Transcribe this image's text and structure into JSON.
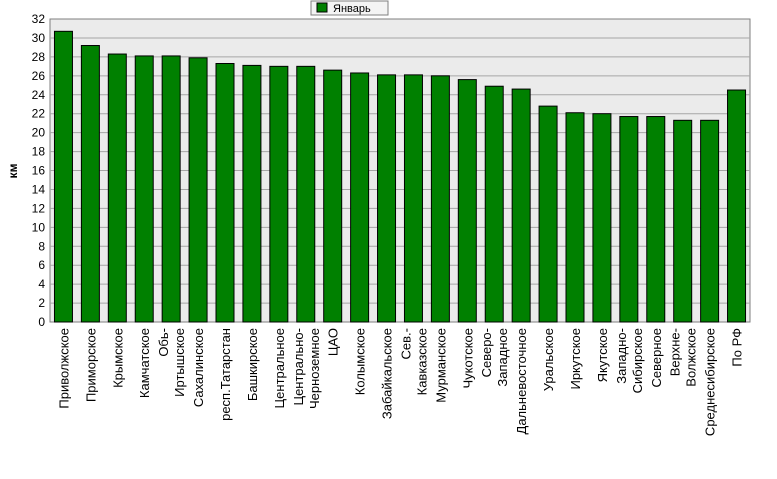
{
  "chart_data": {
    "type": "bar",
    "ylabel": "км",
    "ylim": [
      0,
      32
    ],
    "ytick_step": 2,
    "grid": true,
    "legend_position": "top-center",
    "categories": [
      [
        "Приволжское"
      ],
      [
        "Приморское"
      ],
      [
        "Крымское"
      ],
      [
        "Камчатское"
      ],
      [
        "Обь-",
        "Иртышское"
      ],
      [
        "Сахалинское"
      ],
      [
        "респ.Татарстан"
      ],
      [
        "Башкирское"
      ],
      [
        "Центральное"
      ],
      [
        "Центрально-",
        "Черноземное"
      ],
      [
        "ЦАО"
      ],
      [
        "Колымское"
      ],
      [
        "Забайкальское"
      ],
      [
        "Сев.-",
        "Кавказское"
      ],
      [
        "Мурманское"
      ],
      [
        "Чукотское"
      ],
      [
        "Северо-",
        "Западное"
      ],
      [
        "Дальневосточное"
      ],
      [
        "Уральское"
      ],
      [
        "Иркутское"
      ],
      [
        "Якутское"
      ],
      [
        "Западно-",
        "Сибирское"
      ],
      [
        "Северное"
      ],
      [
        "Верхне-",
        "Волжское"
      ],
      [
        "Среднесибирское"
      ],
      [
        "По РФ"
      ]
    ],
    "series": [
      {
        "name": "Январь",
        "color": "#008000",
        "values": [
          30.7,
          29.2,
          28.3,
          28.1,
          28.1,
          27.9,
          27.3,
          27.1,
          27.0,
          27.0,
          26.6,
          26.3,
          26.1,
          26.1,
          26.0,
          25.6,
          24.9,
          24.6,
          22.8,
          22.1,
          22.0,
          21.7,
          21.7,
          21.3,
          21.3,
          24.5
        ]
      }
    ]
  }
}
